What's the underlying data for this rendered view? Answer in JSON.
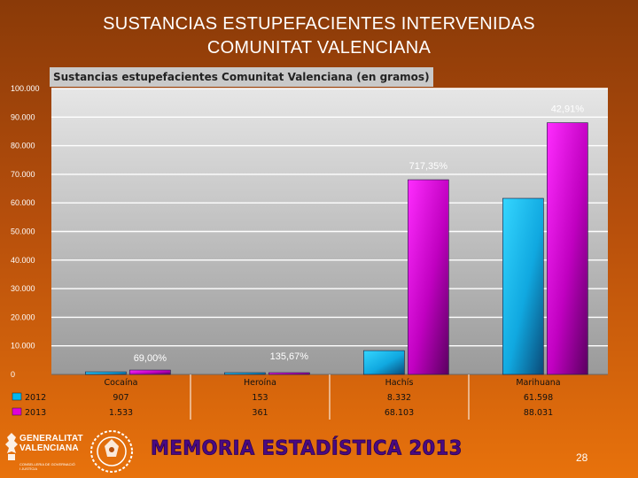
{
  "slide": {
    "title_line1": "SUSTANCIAS ESTUPEFACIENTES INTERVENIDAS",
    "title_line2": "COMUNITAT VALENCIANA",
    "footer_brand": "MEMORIA ESTADÍSTICA 2013",
    "page_number": "28",
    "logo_generalitat_line1": "GENERALITAT",
    "logo_generalitat_line2": "VALENCIANA",
    "logo_generalitat_sub_line1": "CONSELLERIA DE GOVERNACIÓ",
    "logo_generalitat_sub_line2": "I JUSTÍCIA"
  },
  "colors": {
    "series_2012": "#00b7ef",
    "series_2013": "#e000d8",
    "title_text": "#ffffff",
    "brand_text": "#4a0a82"
  },
  "chart_data": {
    "type": "bar",
    "title": "Sustancias estupefacientes Comunitat Valenciana (en gramos)",
    "categories": [
      "Cocaína",
      "Heroína",
      "Hachís",
      "Marihuana"
    ],
    "series": [
      {
        "name": "2012",
        "values": [
          907,
          153,
          8332,
          61598
        ],
        "labels": [
          "907",
          "153",
          "8.332",
          "61.598"
        ]
      },
      {
        "name": "2013",
        "values": [
          1533,
          361,
          68103,
          88031
        ],
        "labels": [
          "1.533",
          "361",
          "68.103",
          "88.031"
        ]
      }
    ],
    "annotations": [
      "69,00%",
      "135,67%",
      "717,35%",
      "42,91%"
    ],
    "ylim": [
      0,
      100000
    ],
    "yticks": [
      0,
      10000,
      20000,
      30000,
      40000,
      50000,
      60000,
      70000,
      80000,
      90000,
      100000
    ],
    "ytick_labels": [
      "0",
      "10.000",
      "20.000",
      "30.000",
      "40.000",
      "50.000",
      "60.000",
      "70.000",
      "80.000",
      "90.000",
      "100.000"
    ],
    "grid": true,
    "legend": "table-below",
    "xlabel": "",
    "ylabel": ""
  }
}
